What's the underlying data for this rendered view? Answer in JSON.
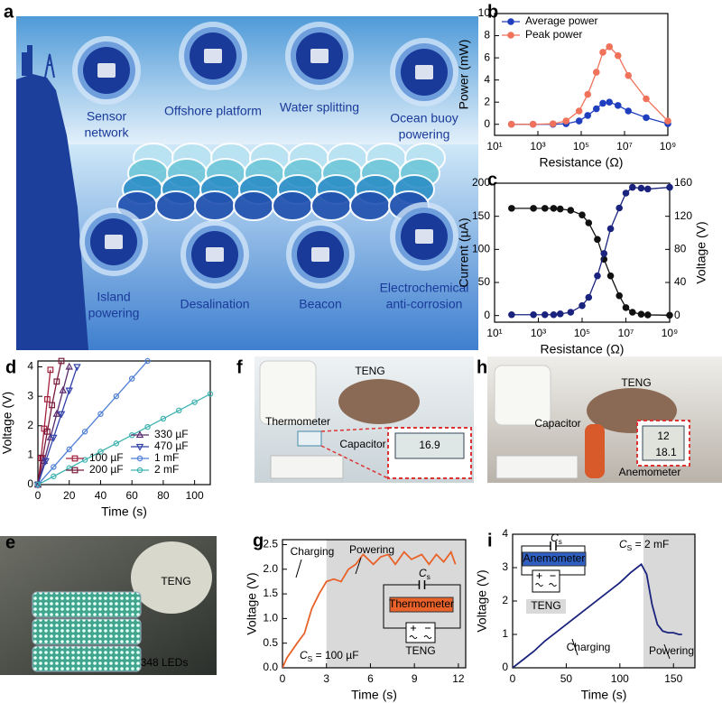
{
  "illustration": {
    "label": "a",
    "sites": [
      [
        "Sensor",
        "network"
      ],
      [
        "Offshore platform"
      ],
      [
        "Water splitting"
      ],
      [
        "Ocean buoy",
        "powering"
      ],
      [
        "Island",
        "powering"
      ],
      [
        "Desalination"
      ],
      [
        "Beacon"
      ],
      [
        "Electrochemical",
        "anti-corrosion"
      ]
    ]
  },
  "photos": [
    {
      "label": "e",
      "texts": [
        "TENG",
        "348 LEDs"
      ]
    },
    {
      "label": "f",
      "texts": [
        "TENG",
        "Thermometer",
        "Capacitor",
        "16.9"
      ]
    },
    {
      "label": "h",
      "texts": [
        "TENG",
        "Capacitor",
        "Anemometer",
        "12",
        "18.1"
      ]
    }
  ],
  "chart_data": [
    {
      "type": "line",
      "label": "b",
      "xlabel": "Resistance (Ω)",
      "ylabel": "Power (mW)",
      "xlog": true,
      "xlim": [
        10,
        1000000000
      ],
      "xticks": [
        {
          "value": 10,
          "label": "10¹"
        },
        {
          "value": 1000,
          "label": "10³"
        },
        {
          "value": 100000,
          "label": "10⁵"
        },
        {
          "value": 10000000,
          "label": "10⁷"
        },
        {
          "value": 1000000000,
          "label": "10⁹"
        }
      ],
      "ylim": [
        -1,
        10
      ],
      "yticks": [
        0,
        2,
        4,
        6,
        8,
        10
      ],
      "legend": "top-left",
      "marker_style": "filled",
      "x": [
        60,
        600,
        5000,
        20000,
        80000,
        200000,
        500000,
        1000000,
        2000000,
        5000000,
        15000000,
        100000000,
        1000000000
      ],
      "series": [
        {
          "name": "Average power",
          "color": "#1f3fbf",
          "marker": "circle",
          "values": [
            0,
            0,
            0,
            0.05,
            0.3,
            0.8,
            1.4,
            1.9,
            2.0,
            1.7,
            1.2,
            0.6,
            0.05
          ]
        },
        {
          "name": "Peak power",
          "color": "#f0725a",
          "marker": "circle",
          "values": [
            0,
            0,
            0.05,
            0.3,
            1.2,
            2.7,
            4.7,
            6.5,
            7.0,
            6.2,
            4.4,
            2.3,
            0.3
          ]
        }
      ]
    },
    {
      "type": "line",
      "label": "c",
      "xlabel": "Resistance (Ω)",
      "ylabel": "Current (µA)",
      "y2label": "Voltage (V)",
      "xlog": true,
      "xlim": [
        10,
        1000000000
      ],
      "xticks": [
        {
          "value": 10,
          "label": "10¹"
        },
        {
          "value": 1000,
          "label": "10³"
        },
        {
          "value": 100000,
          "label": "10⁵"
        },
        {
          "value": 10000000,
          "label": "10⁷"
        },
        {
          "value": 1000000000,
          "label": "10⁹"
        }
      ],
      "ylim": [
        -10,
        200
      ],
      "yticks": [
        0,
        50,
        100,
        150,
        200
      ],
      "y2lim": [
        -8,
        160
      ],
      "y2ticks": [
        0,
        40,
        80,
        120,
        160
      ],
      "marker_style": "filled",
      "x": [
        60,
        600,
        2000,
        5000,
        10000,
        30000,
        100000,
        200000,
        500000,
        1000000,
        2000000,
        5000000,
        10000000,
        20000000,
        50000000,
        100000000,
        1000000000
      ],
      "series": [
        {
          "name": "Current",
          "color": "#111111",
          "marker": "circle",
          "values": [
            162,
            162,
            162,
            162,
            161,
            159,
            152,
            140,
            115,
            85,
            60,
            30,
            12,
            5,
            2,
            1,
            0.5
          ]
        },
        {
          "name": "Voltage",
          "color": "#1a237e",
          "marker": "circle",
          "axis": "y2",
          "values": [
            1,
            1,
            1,
            1,
            2,
            4,
            12,
            22,
            48,
            75,
            105,
            130,
            148,
            155,
            154,
            153,
            155
          ]
        }
      ]
    },
    {
      "type": "line",
      "label": "d",
      "xlabel": "Time (s)",
      "ylabel": "Voltage (V)",
      "xlim": [
        0,
        110
      ],
      "xticks": [
        0,
        20,
        40,
        60,
        80,
        100
      ],
      "ylim": [
        0,
        4.2
      ],
      "yticks": [
        0,
        1,
        2,
        3,
        4
      ],
      "legend": "bottom-right",
      "marker_style": "open",
      "series": [
        {
          "name": "100 µF",
          "color": "#a3203c",
          "marker": "square",
          "x": [
            0,
            2,
            4,
            6,
            8
          ],
          "values": [
            0,
            0.9,
            1.9,
            2.9,
            3.9
          ]
        },
        {
          "name": "200 µF",
          "color": "#7a1a3a",
          "marker": "square",
          "x": [
            0,
            3,
            6,
            9,
            12,
            15
          ],
          "values": [
            0,
            0.9,
            1.8,
            2.7,
            3.5,
            4.2
          ]
        },
        {
          "name": "330 µF",
          "color": "#5a2a6e",
          "marker": "triangle-up",
          "x": [
            0,
            4,
            8,
            12,
            16,
            20
          ],
          "values": [
            0,
            0.8,
            1.6,
            2.4,
            3.2,
            4.0
          ]
        },
        {
          "name": "470 µF",
          "color": "#3040a8",
          "marker": "triangle-down",
          "x": [
            0,
            5,
            10,
            15,
            20,
            25
          ],
          "values": [
            0,
            0.8,
            1.6,
            2.4,
            3.2,
            4.0
          ]
        },
        {
          "name": "1 mF",
          "color": "#4f7fd6",
          "marker": "circle",
          "x": [
            0,
            10,
            20,
            30,
            40,
            50,
            60,
            70
          ],
          "values": [
            0,
            0.6,
            1.2,
            1.8,
            2.4,
            3.0,
            3.6,
            4.2
          ]
        },
        {
          "name": "2 mF",
          "color": "#3fb3b0",
          "marker": "circle",
          "x": [
            0,
            10,
            20,
            30,
            40,
            50,
            60,
            70,
            80,
            90,
            100,
            110
          ],
          "values": [
            0,
            0.28,
            0.56,
            0.84,
            1.12,
            1.4,
            1.68,
            1.96,
            2.24,
            2.52,
            2.8,
            3.08
          ]
        }
      ]
    },
    {
      "type": "line",
      "label": "g",
      "xlabel": "Time (s)",
      "ylabel": "Voltage (V)",
      "xlim": [
        0,
        12.5
      ],
      "xticks": [
        0,
        3,
        6,
        9,
        12
      ],
      "ylim": [
        0,
        2.6
      ],
      "yticks": [
        {
          "value": 0,
          "label": "0.0"
        },
        0.5,
        {
          "value": 1,
          "label": "1.0"
        },
        1.5,
        {
          "value": 2,
          "label": "2.0"
        },
        2.5
      ],
      "shaded_region": [
        3,
        12.5
      ],
      "annotations": [
        "Charging",
        "Powering"
      ],
      "capacitance": {
        "main": "C",
        "sub": "S",
        "rest": " = 100 µF"
      },
      "inset": {
        "cap": {
          "main": "C",
          "sub": "s"
        },
        "device": "Thermometer",
        "source": "TENG"
      },
      "x": [
        0,
        0.3,
        1,
        1.5,
        2,
        2.5,
        3,
        3.5,
        4,
        4.5,
        5,
        5.5,
        6.2,
        6.7,
        7.2,
        7.7,
        8.3,
        8.8,
        9.5,
        10,
        10.5,
        11,
        11.5,
        11.8
      ],
      "series": [
        {
          "name": "Voltage",
          "color": "#e8622a",
          "values": [
            0,
            0.2,
            0.5,
            0.7,
            1.2,
            1.5,
            1.75,
            1.8,
            1.75,
            2.0,
            2.1,
            2.3,
            2.1,
            2.25,
            2.3,
            2.1,
            2.35,
            2.2,
            2.3,
            2.1,
            2.3,
            2.15,
            2.35,
            2.1
          ]
        }
      ]
    },
    {
      "type": "line",
      "label": "i",
      "xlabel": "Time (s)",
      "ylabel": "Voltage (V)",
      "xlim": [
        0,
        170
      ],
      "xticks": [
        0,
        50,
        100,
        150
      ],
      "ylim": [
        0,
        4
      ],
      "yticks": [
        0,
        1,
        2,
        3,
        4
      ],
      "shaded_region": [
        122,
        170
      ],
      "annotations": [
        "Charging",
        "Powering"
      ],
      "capacitance": {
        "main": "C",
        "sub": "S",
        "rest": " = 2 mF"
      },
      "inset": {
        "cap": {
          "main": "C",
          "sub": "s"
        },
        "device": "Anemometer",
        "source": "TENG"
      },
      "x": [
        0,
        10,
        20,
        30,
        40,
        50,
        60,
        70,
        80,
        90,
        100,
        110,
        120,
        125,
        130,
        135,
        140,
        145,
        150,
        155,
        158
      ],
      "series": [
        {
          "name": "Voltage",
          "color": "#1a237e",
          "values": [
            0,
            0.25,
            0.5,
            0.8,
            1.05,
            1.3,
            1.55,
            1.8,
            2.05,
            2.3,
            2.55,
            2.85,
            3.1,
            2.8,
            1.9,
            1.3,
            1.1,
            1.05,
            1.05,
            1.0,
            1.0
          ]
        }
      ]
    }
  ]
}
